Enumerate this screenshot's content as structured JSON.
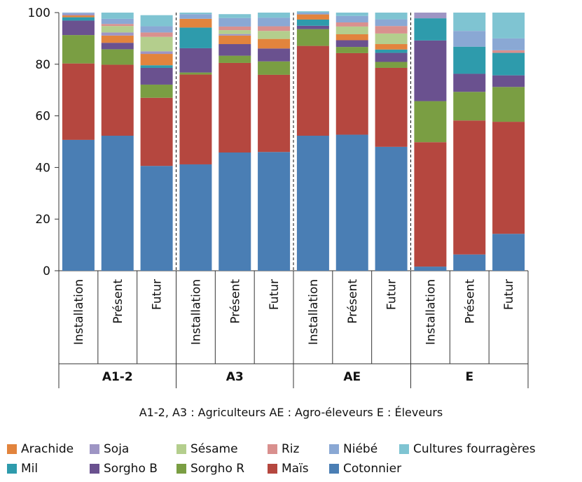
{
  "chart_data": {
    "type": "bar",
    "stacked": true,
    "ylim": [
      0,
      100
    ],
    "yticks": [
      0,
      20,
      40,
      60,
      80,
      100
    ],
    "groups": [
      {
        "label": "A1-2",
        "categories": [
          "Installation",
          "Présent",
          "Futur"
        ]
      },
      {
        "label": "A3",
        "categories": [
          "Installation",
          "Présent",
          "Futur"
        ]
      },
      {
        "label": "AE",
        "categories": [
          "Installation",
          "Présent",
          "Futur"
        ]
      },
      {
        "label": "E",
        "categories": [
          "Installation",
          "Présent",
          "Futur"
        ]
      }
    ],
    "series": [
      {
        "name": "Cotonnier",
        "color": "#4a7eb4",
        "values": [
          50.7,
          52.3,
          40.6,
          41.2,
          45.8,
          46.0,
          52.3,
          52.7,
          48.0,
          1.6,
          6.3,
          14.3
        ]
      },
      {
        "name": "Maïs",
        "color": "#b5473f",
        "values": [
          29.6,
          27.5,
          26.4,
          34.8,
          34.7,
          29.9,
          34.8,
          31.6,
          30.6,
          48.2,
          51.9,
          43.4
        ]
      },
      {
        "name": "Sorgho R",
        "color": "#7a9e43",
        "values": [
          11.0,
          6.0,
          5.1,
          0.8,
          2.8,
          5.2,
          6.5,
          2.4,
          2.3,
          15.9,
          11.1,
          13.5
        ]
      },
      {
        "name": "Sorgho B",
        "color": "#6a518f",
        "values": [
          5.6,
          2.5,
          6.5,
          9.4,
          4.5,
          5.0,
          1.3,
          2.6,
          3.5,
          23.5,
          7.0,
          4.5
        ]
      },
      {
        "name": "Mil",
        "color": "#2e9bac",
        "values": [
          1.3,
          0.0,
          1.0,
          8.0,
          0.0,
          0.0,
          2.4,
          0.0,
          1.3,
          8.6,
          10.5,
          8.7
        ]
      },
      {
        "name": "Arachide",
        "color": "#e2843d",
        "values": [
          0.7,
          2.8,
          4.4,
          3.4,
          3.3,
          3.7,
          2.0,
          2.3,
          2.1,
          0.0,
          0.0,
          0.0
        ]
      },
      {
        "name": "Soja",
        "color": "#9e95c4",
        "values": [
          0.6,
          1.2,
          1.0,
          0.0,
          0.6,
          0.0,
          0.0,
          0.0,
          0.0,
          2.2,
          0.0,
          0.0
        ]
      },
      {
        "name": "Sésame",
        "color": "#b4ce8d",
        "values": [
          0.0,
          2.5,
          5.6,
          0.0,
          1.5,
          3.1,
          0.0,
          3.0,
          4.1,
          0.0,
          0.0,
          0.0
        ]
      },
      {
        "name": "Riz",
        "color": "#d9908e",
        "values": [
          0.0,
          0.8,
          1.7,
          0.0,
          1.4,
          1.8,
          0.0,
          1.6,
          2.9,
          0.0,
          0.0,
          1.0
        ]
      },
      {
        "name": "Niébé",
        "color": "#8aa8d4",
        "values": [
          0.5,
          2.0,
          2.4,
          1.8,
          3.3,
          3.3,
          0.7,
          2.5,
          2.6,
          0.0,
          6.1,
          4.6
        ]
      },
      {
        "name": "Cultures fourragères",
        "color": "#7fc4d2",
        "values": [
          0.0,
          2.4,
          4.3,
          0.6,
          1.5,
          2.0,
          0.5,
          1.3,
          2.6,
          0.0,
          7.1,
          10.0
        ]
      }
    ]
  },
  "caption": "A1-2, A3 : Agriculteurs    AE : Agro-éleveurs    E : Éleveurs",
  "legend": {
    "rows": [
      [
        "Arachide",
        "Soja",
        "Sésame",
        "Riz",
        "Niébé",
        "Cultures fourragères"
      ],
      [
        "Mil",
        "Sorgho B",
        "Sorgho R",
        "Maïs",
        "Cotonnier"
      ]
    ]
  }
}
